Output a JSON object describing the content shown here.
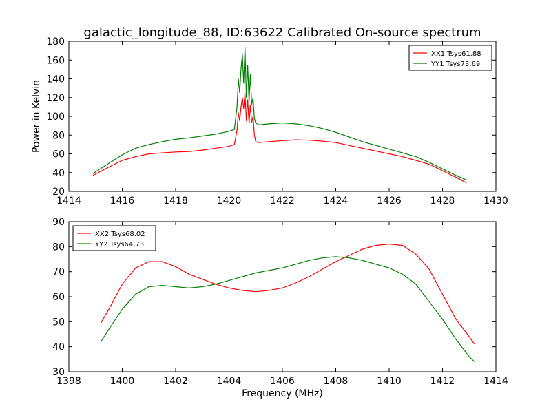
{
  "figure_title": "galactic_longitude_88, ID:63622 Calibrated On-source spectrum",
  "chart_data": [
    {
      "type": "line",
      "xlim": [
        1414,
        1430
      ],
      "ylim": [
        20,
        180
      ],
      "xticks": [
        1414,
        1416,
        1418,
        1420,
        1422,
        1424,
        1426,
        1428,
        1430
      ],
      "yticks": [
        20,
        40,
        60,
        80,
        100,
        120,
        140,
        160,
        180
      ],
      "xlabel": "",
      "ylabel": "Power in Kelvin",
      "grid": false,
      "legend_position": "top-right",
      "series": [
        {
          "name": "XX1 Tsys61.88",
          "color": "#ff0000",
          "x": [
            1414.9,
            1415.5,
            1416.0,
            1416.5,
            1417.0,
            1417.5,
            1418.0,
            1418.5,
            1419.0,
            1419.5,
            1420.0,
            1420.2,
            1420.3,
            1420.35,
            1420.4,
            1420.45,
            1420.5,
            1420.55,
            1420.6,
            1420.65,
            1420.7,
            1420.75,
            1420.8,
            1420.85,
            1420.9,
            1420.95,
            1421.0,
            1421.1,
            1421.5,
            1422.0,
            1422.5,
            1423.0,
            1423.5,
            1424.0,
            1424.5,
            1425.0,
            1425.5,
            1426.0,
            1426.5,
            1427.0,
            1427.5,
            1428.0,
            1428.5,
            1428.9
          ],
          "y": [
            37,
            46,
            53,
            57,
            60,
            61,
            62,
            62.5,
            64,
            66,
            68,
            70,
            85,
            104,
            95,
            110,
            120,
            108,
            125,
            95,
            118,
            92,
            112,
            93,
            100,
            80,
            73,
            72,
            73,
            74,
            75,
            74.5,
            73.5,
            72,
            69,
            66,
            63,
            60,
            57,
            53,
            49,
            42,
            35,
            29
          ]
        },
        {
          "name": "YY1 Tsys73.69",
          "color": "#008000",
          "x": [
            1414.9,
            1415.5,
            1416.0,
            1416.5,
            1417.0,
            1417.5,
            1418.0,
            1418.5,
            1419.0,
            1419.5,
            1420.0,
            1420.2,
            1420.3,
            1420.35,
            1420.4,
            1420.45,
            1420.5,
            1420.55,
            1420.6,
            1420.65,
            1420.7,
            1420.75,
            1420.8,
            1420.85,
            1420.9,
            1420.95,
            1421.0,
            1421.1,
            1421.5,
            1422.0,
            1422.5,
            1423.0,
            1423.5,
            1424.0,
            1424.5,
            1425.0,
            1425.5,
            1426.0,
            1426.5,
            1427.0,
            1427.5,
            1428.0,
            1428.5,
            1428.9
          ],
          "y": [
            39,
            50,
            59,
            66,
            70,
            73,
            75.5,
            77,
            79,
            81,
            84,
            86,
            110,
            140,
            125,
            150,
            166,
            135,
            174,
            120,
            155,
            115,
            145,
            112,
            120,
            98,
            93,
            91,
            92,
            93,
            92,
            90,
            87,
            83,
            78,
            73,
            69,
            65,
            61,
            57,
            51,
            44,
            37,
            32
          ]
        }
      ]
    },
    {
      "type": "line",
      "xlim": [
        1398,
        1414
      ],
      "ylim": [
        30,
        90
      ],
      "xticks": [
        1398,
        1400,
        1402,
        1404,
        1406,
        1408,
        1410,
        1412,
        1414
      ],
      "yticks": [
        30,
        40,
        50,
        60,
        70,
        80,
        90
      ],
      "xlabel": "Frequency (MHz)",
      "ylabel": "",
      "grid": false,
      "legend_position": "top-left",
      "series": [
        {
          "name": "XX2 Tsys68.02",
          "color": "#ff0000",
          "x": [
            1399.2,
            1399.5,
            1400.0,
            1400.5,
            1401.0,
            1401.5,
            1402.0,
            1402.5,
            1403.0,
            1403.5,
            1404.0,
            1404.5,
            1405.0,
            1405.5,
            1406.0,
            1406.5,
            1407.0,
            1407.5,
            1408.0,
            1408.5,
            1409.0,
            1409.5,
            1410.0,
            1410.5,
            1411.0,
            1411.5,
            1412.0,
            1412.5,
            1413.0,
            1413.2
          ],
          "y": [
            49.5,
            55,
            65,
            71.5,
            74,
            74,
            72,
            69,
            67,
            65,
            63.5,
            62.5,
            62,
            62.5,
            63.5,
            65.5,
            68,
            71,
            74,
            76.5,
            79,
            80.5,
            81,
            80.5,
            77,
            71,
            61,
            51,
            44,
            41
          ]
        },
        {
          "name": "YY2 Tsys64.73",
          "color": "#008000",
          "x": [
            1399.2,
            1399.5,
            1400.0,
            1400.5,
            1401.0,
            1401.5,
            1402.0,
            1402.5,
            1403.0,
            1403.5,
            1404.0,
            1404.5,
            1405.0,
            1405.5,
            1406.0,
            1406.5,
            1407.0,
            1407.5,
            1408.0,
            1408.5,
            1409.0,
            1409.5,
            1410.0,
            1410.5,
            1411.0,
            1411.5,
            1412.0,
            1412.5,
            1413.0,
            1413.2
          ],
          "y": [
            42,
            47,
            55,
            61,
            64,
            64.5,
            64,
            63.5,
            64,
            65,
            66.5,
            68,
            69.5,
            70.5,
            71.5,
            73,
            74.5,
            75.5,
            76,
            75.5,
            74.5,
            73,
            71.5,
            69,
            65,
            58,
            51,
            43,
            36,
            34
          ]
        }
      ]
    }
  ]
}
